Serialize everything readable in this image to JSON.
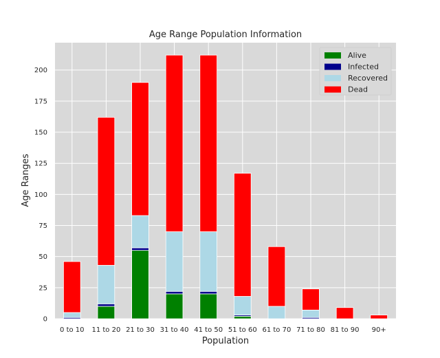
{
  "chart_data": {
    "type": "bar",
    "stacked": true,
    "title": "Age Range Population Information",
    "xlabel": "Population",
    "ylabel": "Age Ranges",
    "ylim": [
      0,
      222
    ],
    "yticks": [
      0,
      25,
      50,
      75,
      100,
      125,
      150,
      175,
      200
    ],
    "grid": true,
    "legend_position": "top-right",
    "categories": [
      "0 to 10",
      "11 to 20",
      "21 to 30",
      "31 to 40",
      "41 to 50",
      "51 to 60",
      "61 to 70",
      "71 to 80",
      "81 to 90",
      "90+"
    ],
    "series": [
      {
        "name": "Alive",
        "color": "#008000",
        "values": [
          0,
          10,
          55,
          20,
          20,
          2,
          0,
          0,
          0,
          0
        ]
      },
      {
        "name": "Infected",
        "color": "#00008b",
        "values": [
          1,
          2,
          2,
          2,
          2,
          1,
          0,
          1,
          0,
          0
        ]
      },
      {
        "name": "Recovered",
        "color": "#add8e6",
        "values": [
          4,
          31,
          26,
          48,
          48,
          15,
          10,
          6,
          0,
          0
        ]
      },
      {
        "name": "Dead",
        "color": "#ff0000",
        "values": [
          41,
          119,
          107,
          142,
          142,
          99,
          48,
          17,
          9,
          3
        ]
      }
    ]
  }
}
